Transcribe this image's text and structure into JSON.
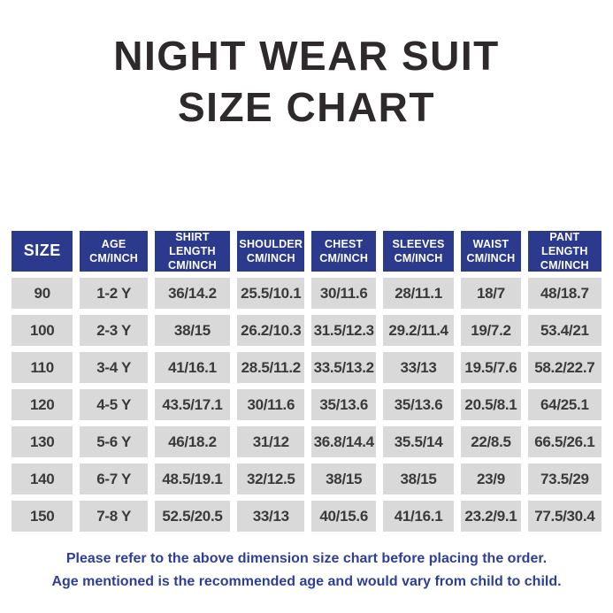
{
  "title": {
    "line1": "NIGHT WEAR SUIT",
    "line2": "SIZE CHART"
  },
  "chart_data": {
    "type": "table",
    "title": "NIGHT WEAR SUIT SIZE CHART",
    "columns": [
      {
        "label": "SIZE",
        "sub": ""
      },
      {
        "label": "AGE",
        "sub": "CM/INCH"
      },
      {
        "label": "SHIRT LENGTH",
        "sub": "CM/INCH"
      },
      {
        "label": "SHOULDER",
        "sub": "CM/INCH"
      },
      {
        "label": "CHEST",
        "sub": "CM/INCH"
      },
      {
        "label": "SLEEVES",
        "sub": "CM/INCH"
      },
      {
        "label": "WAIST",
        "sub": "CM/INCH"
      },
      {
        "label": "PANT LENGTH",
        "sub": "CM/INCH"
      }
    ],
    "rows": [
      [
        "90",
        "1-2 Y",
        "36/14.2",
        "25.5/10.1",
        "30/11.6",
        "28/11.1",
        "18/7",
        "48/18.7"
      ],
      [
        "100",
        "2-3 Y",
        "38/15",
        "26.2/10.3",
        "31.5/12.3",
        "29.2/11.4",
        "19/7.2",
        "53.4/21"
      ],
      [
        "110",
        "3-4 Y",
        "41/16.1",
        "28.5/11.2",
        "33.5/13.2",
        "33/13",
        "19.5/7.6",
        "58.2/22.7"
      ],
      [
        "120",
        "4-5 Y",
        "43.5/17.1",
        "30/11.6",
        "35/13.6",
        "35/13.6",
        "20.5/8.1",
        "64/25.1"
      ],
      [
        "130",
        "5-6 Y",
        "46/18.2",
        "31/12",
        "36.8/14.4",
        "35.5/14",
        "22/8.5",
        "66.5/26.1"
      ],
      [
        "140",
        "6-7 Y",
        "48.5/19.1",
        "32/12.5",
        "38/15",
        "38/15",
        "23/9",
        "73.5/29"
      ],
      [
        "150",
        "7-8 Y",
        "52.5/20.5",
        "33/13",
        "40/15.6",
        "41/16.1",
        "23.2/9.1",
        "77.5/30.4"
      ]
    ]
  },
  "footer": {
    "line1": "Please refer to the above dimension size chart before placing the order.",
    "line2": "Age mentioned is the recommended age and would vary from child to child."
  },
  "colors": {
    "header_bg": "#2b3a8c",
    "cell_bg": "#d9d9d9",
    "title_text": "#2e2a2b",
    "cell_text": "#3a3a3a",
    "footer_text": "#2e3f97",
    "page_bg": "#ffffff"
  }
}
